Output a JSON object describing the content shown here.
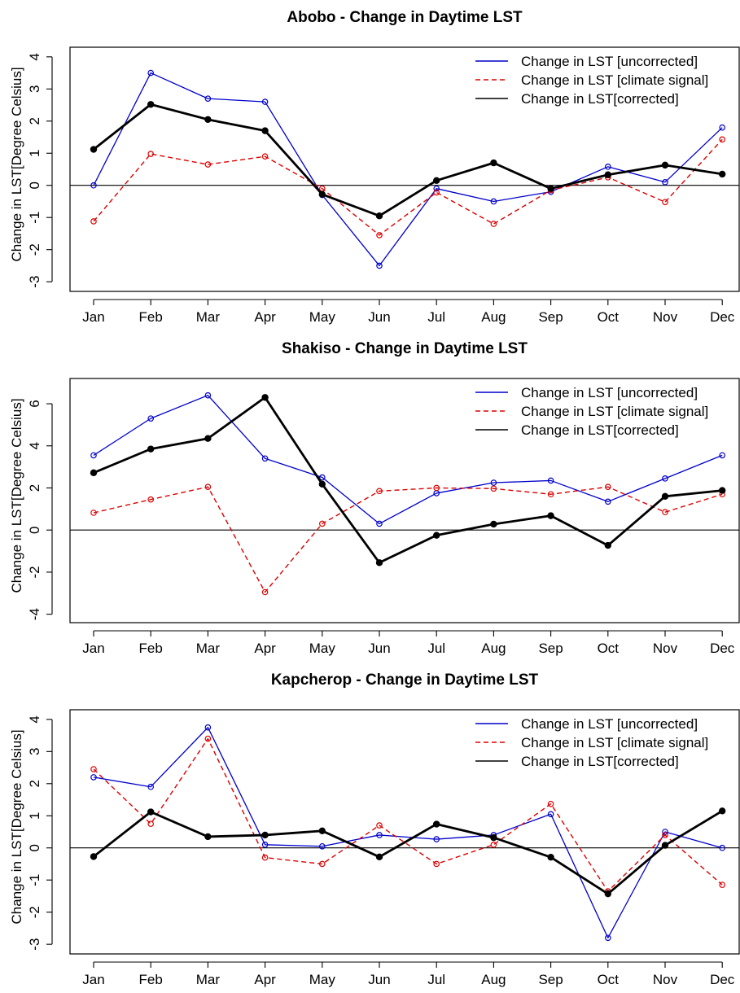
{
  "chart_data": [
    {
      "type": "line",
      "title": "Abobo - Change in Daytime LST",
      "xlabel": "",
      "ylabel": "Change in LST[Degree Celsius]",
      "categories": [
        "Jan",
        "Feb",
        "Mar",
        "Apr",
        "May",
        "Jun",
        "Jul",
        "Aug",
        "Sep",
        "Oct",
        "Nov",
        "Dec"
      ],
      "yticks": [
        -3,
        -2,
        -1,
        0,
        1,
        2,
        3,
        4
      ],
      "ylim": [
        -3.3,
        4.3
      ],
      "legend_position": "top-right",
      "series": [
        {
          "name": "Change in LST [uncorrected]",
          "color": "#0000cc",
          "style": "solid",
          "values": [
            0.0,
            3.5,
            2.7,
            2.6,
            -0.3,
            -2.5,
            -0.1,
            -0.5,
            -0.2,
            0.58,
            0.1,
            1.8
          ]
        },
        {
          "name": "Change in LST [climate signal]",
          "color": "#dd0000",
          "style": "dashed",
          "values": [
            -1.12,
            0.98,
            0.65,
            0.9,
            -0.1,
            -1.55,
            -0.22,
            -1.2,
            -0.15,
            0.25,
            -0.52,
            1.43
          ]
        },
        {
          "name": "Change in LST[corrected]",
          "color": "#000000",
          "style": "solid-bold",
          "values": [
            1.12,
            2.52,
            2.05,
            1.7,
            -0.28,
            -0.95,
            0.15,
            0.7,
            -0.1,
            0.33,
            0.63,
            0.35
          ]
        }
      ]
    },
    {
      "type": "line",
      "title": "Shakiso - Change in Daytime LST",
      "xlabel": "",
      "ylabel": "Change in LST[Degree Celsius]",
      "categories": [
        "Jan",
        "Feb",
        "Mar",
        "Apr",
        "May",
        "Jun",
        "Jul",
        "Aug",
        "Sep",
        "Oct",
        "Nov",
        "Dec"
      ],
      "yticks": [
        -4,
        -2,
        0,
        2,
        4,
        6
      ],
      "ylim": [
        -4.4,
        7.2
      ],
      "legend_position": "top-right",
      "series": [
        {
          "name": "Change in LST [uncorrected]",
          "color": "#0000cc",
          "style": "solid",
          "values": [
            3.55,
            5.3,
            6.4,
            3.4,
            2.5,
            0.3,
            1.75,
            2.25,
            2.35,
            1.35,
            2.45,
            3.55
          ]
        },
        {
          "name": "Change in LST [climate signal]",
          "color": "#dd0000",
          "style": "dashed",
          "values": [
            0.82,
            1.45,
            2.05,
            -2.95,
            0.3,
            1.85,
            2.0,
            1.97,
            1.7,
            2.05,
            0.85,
            1.7
          ]
        },
        {
          "name": "Change in LST[corrected]",
          "color": "#000000",
          "style": "solid-bold",
          "values": [
            2.72,
            3.85,
            4.35,
            6.3,
            2.18,
            -1.55,
            -0.25,
            0.28,
            0.68,
            -0.73,
            1.6,
            1.88
          ]
        }
      ]
    },
    {
      "type": "line",
      "title": "Kapcherop - Change in Daytime LST",
      "xlabel": "",
      "ylabel": "Change in LST[Degree Celsius]",
      "categories": [
        "Jan",
        "Feb",
        "Mar",
        "Apr",
        "May",
        "Jun",
        "Jul",
        "Aug",
        "Sep",
        "Oct",
        "Nov",
        "Dec"
      ],
      "yticks": [
        -3,
        -2,
        -1,
        0,
        1,
        2,
        3,
        4
      ],
      "ylim": [
        -3.3,
        4.3
      ],
      "legend_position": "top-right",
      "series": [
        {
          "name": "Change in LST [uncorrected]",
          "color": "#0000cc",
          "style": "solid",
          "values": [
            2.2,
            1.9,
            3.75,
            0.1,
            0.05,
            0.4,
            0.27,
            0.4,
            1.05,
            -2.8,
            0.5,
            0.0
          ]
        },
        {
          "name": "Change in LST [climate signal]",
          "color": "#dd0000",
          "style": "dashed",
          "values": [
            2.45,
            0.75,
            3.4,
            -0.3,
            -0.5,
            0.7,
            -0.5,
            0.1,
            1.37,
            -1.35,
            0.4,
            -1.15
          ]
        },
        {
          "name": "Change in LST[corrected]",
          "color": "#000000",
          "style": "solid-bold",
          "values": [
            -0.27,
            1.12,
            0.35,
            0.4,
            0.53,
            -0.28,
            0.74,
            0.32,
            -0.29,
            -1.43,
            0.08,
            1.15
          ]
        }
      ]
    }
  ]
}
